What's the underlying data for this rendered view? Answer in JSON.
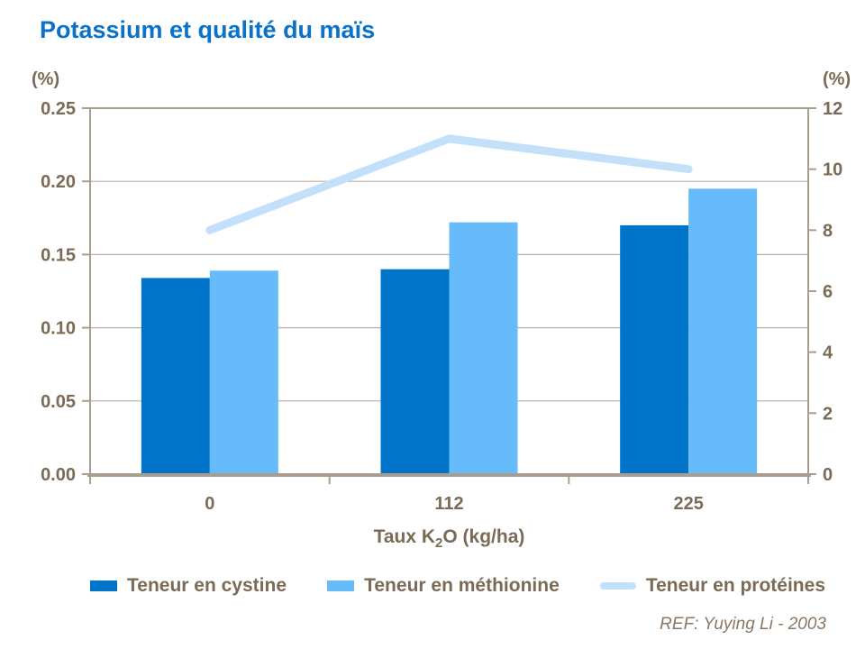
{
  "title": "Potassium et qualité du maïs",
  "colors": {
    "title": "#0a72c8",
    "bar_cystine": "#0074c8",
    "bar_methionine": "#68bbfb",
    "line_proteines": "#c3e0fb",
    "axis_text": "#7b6a55",
    "axis_line": "#a89d8e",
    "gridline": "#b8afa2",
    "ref_text": "#8a7765"
  },
  "chart_data": {
    "type": "bar+line combo, dual y-axes",
    "categories": [
      "0",
      "112",
      "225"
    ],
    "series": [
      {
        "name": "Teneur en cystine",
        "type": "bar",
        "axis": "left",
        "color": "#0074c8",
        "values": [
          0.134,
          0.14,
          0.17
        ]
      },
      {
        "name": "Teneur en méthionine",
        "type": "bar",
        "axis": "left",
        "color": "#68bbfb",
        "values": [
          0.139,
          0.172,
          0.195
        ]
      },
      {
        "name": "Teneur en protéines",
        "type": "line",
        "axis": "right",
        "color": "#c3e0fb",
        "values": [
          8,
          11,
          10
        ]
      }
    ],
    "left_axis": {
      "label": "(%)",
      "min": 0,
      "max": 0.25,
      "ticks": [
        "0.00",
        "0.05",
        "0.10",
        "0.15",
        "0.20",
        "0.25"
      ]
    },
    "right_axis": {
      "label": "(%)",
      "min": 0,
      "max": 12,
      "ticks": [
        "0",
        "2",
        "4",
        "6",
        "8",
        "10",
        "12"
      ]
    },
    "x_axis": {
      "label_parts": [
        "Taux K",
        "2",
        "O (kg/ha)"
      ]
    },
    "grid": "horizontal gridlines at left-axis ticks",
    "legend_position": "bottom"
  },
  "footer": {
    "ref": "REF: Yuying Li - 2003"
  }
}
